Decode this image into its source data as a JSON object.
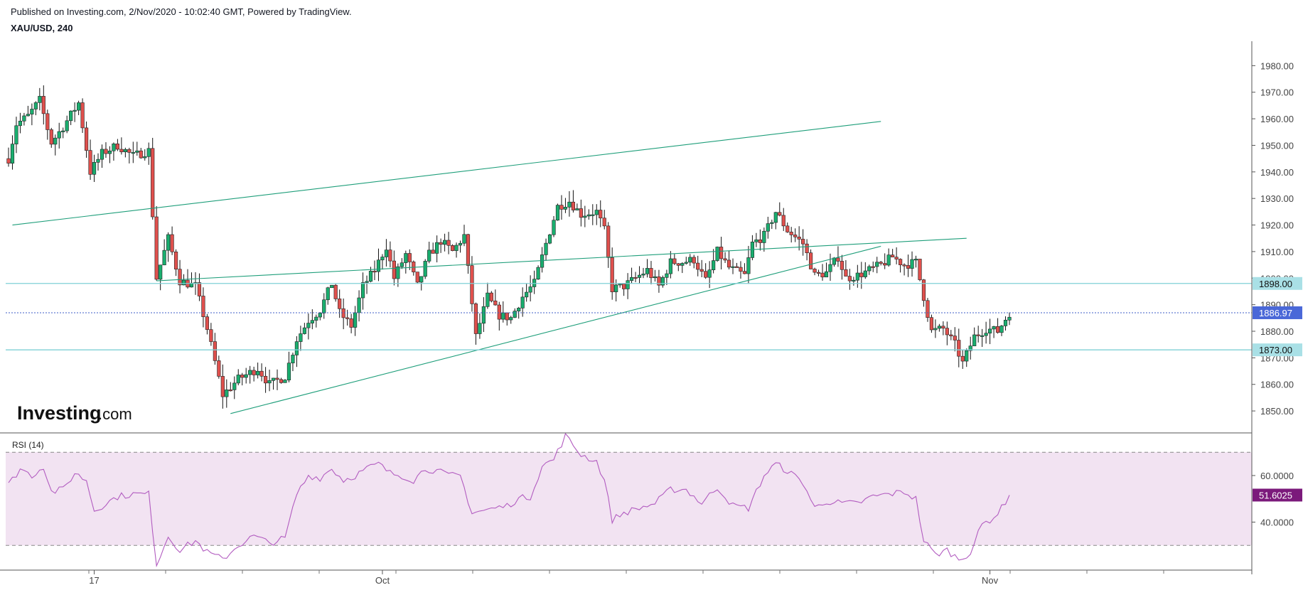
{
  "header": {
    "published_line": "Published on Investing.com, 2/Nov/2020 - 10:02:40 GMT, Powered by TradingView.",
    "symbol_line": "XAU/USD, 240"
  },
  "logo": {
    "brand": "Investing",
    "suffix": ".com"
  },
  "colors": {
    "bull": "#26a69a",
    "bull_fill": "#1aae6f",
    "bear": "#e0504d",
    "wick": "#111111",
    "trendline": "#1e9e7a",
    "support_line": "#7fd0d6",
    "current_line": "#3d5cc7",
    "rsi_line": "#b25cc0",
    "rsi_band": "#f2e3f2",
    "badge_support": "#a9e0e6",
    "badge_current": "#4a68d8",
    "badge_rsi": "#7b1a7b"
  },
  "chart_data": [
    {
      "type": "candlestick",
      "title": "XAU/USD, 240",
      "y_ticks": [
        "1850.00",
        "1860.00",
        "1870.00",
        "1880.00",
        "1890.00",
        "1900.00",
        "1910.00",
        "1920.00",
        "1930.00",
        "1940.00",
        "1950.00",
        "1960.00",
        "1970.00",
        "1980.00"
      ],
      "ylim": [
        1842,
        1990
      ],
      "x_tick_labels": [
        {
          "label": "17",
          "index": 22
        },
        {
          "label": "Oct",
          "index": 96
        },
        {
          "label": "Nov",
          "index": 252
        }
      ],
      "n_bars": 258,
      "horizontal_lines": [
        {
          "value": 1898.0,
          "label": "1898.00",
          "style": "support"
        },
        {
          "value": 1886.97,
          "label": "1886.97",
          "style": "current"
        },
        {
          "value": 1873.0,
          "label": "1873.00",
          "style": "support"
        }
      ],
      "trendlines": [
        {
          "x": [
            1,
            224
          ],
          "y": [
            1920,
            1959
          ]
        },
        {
          "x": [
            38,
            246
          ],
          "y": [
            1899,
            1915
          ]
        },
        {
          "x": [
            57,
            224
          ],
          "y": [
            1849,
            1912
          ]
        }
      ],
      "anchors": [
        [
          0,
          1945
        ],
        [
          2,
          1958
        ],
        [
          5,
          1961
        ],
        [
          8,
          1967
        ],
        [
          11,
          1951
        ],
        [
          14,
          1957
        ],
        [
          18,
          1966
        ],
        [
          21,
          1940
        ],
        [
          24,
          1947
        ],
        [
          28,
          1950
        ],
        [
          32,
          1946
        ],
        [
          36,
          1948
        ],
        [
          38,
          1900
        ],
        [
          41,
          1915
        ],
        [
          44,
          1899
        ],
        [
          48,
          1897
        ],
        [
          51,
          1881
        ],
        [
          55,
          1856
        ],
        [
          59,
          1862
        ],
        [
          64,
          1866
        ],
        [
          67,
          1860
        ],
        [
          71,
          1863
        ],
        [
          74,
          1877
        ],
        [
          77,
          1884
        ],
        [
          80,
          1888
        ],
        [
          83,
          1898
        ],
        [
          85,
          1887
        ],
        [
          88,
          1882
        ],
        [
          91,
          1897
        ],
        [
          94,
          1903
        ],
        [
          97,
          1912
        ],
        [
          99,
          1900
        ],
        [
          102,
          1909
        ],
        [
          105,
          1897
        ],
        [
          108,
          1909
        ],
        [
          111,
          1914
        ],
        [
          114,
          1910
        ],
        [
          117,
          1916
        ],
        [
          120,
          1878
        ],
        [
          123,
          1893
        ],
        [
          126,
          1886
        ],
        [
          129,
          1885
        ],
        [
          132,
          1893
        ],
        [
          135,
          1898
        ],
        [
          138,
          1913
        ],
        [
          141,
          1927
        ],
        [
          144,
          1929
        ],
        [
          147,
          1924
        ],
        [
          151,
          1925
        ],
        [
          153,
          1918
        ],
        [
          155,
          1896
        ],
        [
          158,
          1897
        ],
        [
          161,
          1900
        ],
        [
          164,
          1903
        ],
        [
          167,
          1897
        ],
        [
          170,
          1906
        ],
        [
          173,
          1906
        ],
        [
          176,
          1907
        ],
        [
          179,
          1899
        ],
        [
          182,
          1910
        ],
        [
          185,
          1904
        ],
        [
          189,
          1901
        ],
        [
          191,
          1913
        ],
        [
          194,
          1916
        ],
        [
          197,
          1925
        ],
        [
          200,
          1918
        ],
        [
          204,
          1913
        ],
        [
          207,
          1901
        ],
        [
          210,
          1902
        ],
        [
          213,
          1908
        ],
        [
          215,
          1900
        ],
        [
          218,
          1901
        ],
        [
          221,
          1903
        ],
        [
          224,
          1905
        ],
        [
          227,
          1908
        ],
        [
          230,
          1905
        ],
        [
          233,
          1906
        ],
        [
          235,
          1893
        ],
        [
          237,
          1880
        ],
        [
          240,
          1881
        ],
        [
          243,
          1875
        ],
        [
          245,
          1868
        ],
        [
          248,
          1878
        ],
        [
          251,
          1881
        ],
        [
          254,
          1880
        ],
        [
          257,
          1887
        ]
      ],
      "last_price": 1886.97
    },
    {
      "type": "line",
      "title": "RSI (14)",
      "y_ticks": [
        "40.0000",
        "60.0000"
      ],
      "ylim": [
        20,
        78
      ],
      "levels": [
        30,
        70
      ],
      "last_value": 51.6025,
      "last_label": "51.6025",
      "anchors": [
        [
          0,
          56
        ],
        [
          3,
          63
        ],
        [
          6,
          60
        ],
        [
          9,
          64
        ],
        [
          11,
          53
        ],
        [
          14,
          54
        ],
        [
          17,
          61
        ],
        [
          20,
          58
        ],
        [
          22,
          45
        ],
        [
          25,
          48
        ],
        [
          28,
          51
        ],
        [
          32,
          52
        ],
        [
          36,
          52
        ],
        [
          38,
          22
        ],
        [
          41,
          34
        ],
        [
          44,
          28
        ],
        [
          48,
          32
        ],
        [
          51,
          27
        ],
        [
          55,
          24
        ],
        [
          59,
          30
        ],
        [
          63,
          34
        ],
        [
          67,
          31
        ],
        [
          71,
          33
        ],
        [
          74,
          52
        ],
        [
          77,
          60
        ],
        [
          80,
          59
        ],
        [
          83,
          63
        ],
        [
          86,
          58
        ],
        [
          89,
          60
        ],
        [
          92,
          63
        ],
        [
          95,
          65
        ],
        [
          98,
          61
        ],
        [
          101,
          60
        ],
        [
          104,
          58
        ],
        [
          107,
          63
        ],
        [
          110,
          62
        ],
        [
          113,
          60
        ],
        [
          116,
          60
        ],
        [
          119,
          44
        ],
        [
          122,
          45
        ],
        [
          125,
          46
        ],
        [
          128,
          47
        ],
        [
          131,
          50
        ],
        [
          134,
          51
        ],
        [
          137,
          64
        ],
        [
          140,
          67
        ],
        [
          143,
          77
        ],
        [
          147,
          69
        ],
        [
          151,
          66
        ],
        [
          153,
          58
        ],
        [
          155,
          41
        ],
        [
          158,
          44
        ],
        [
          162,
          46
        ],
        [
          166,
          48
        ],
        [
          170,
          54
        ],
        [
          174,
          54
        ],
        [
          178,
          48
        ],
        [
          182,
          55
        ],
        [
          186,
          47
        ],
        [
          190,
          46
        ],
        [
          194,
          60
        ],
        [
          197,
          65
        ],
        [
          200,
          62
        ],
        [
          204,
          57
        ],
        [
          207,
          46
        ],
        [
          210,
          49
        ],
        [
          214,
          48
        ],
        [
          218,
          48
        ],
        [
          222,
          51
        ],
        [
          226,
          52
        ],
        [
          230,
          53
        ],
        [
          233,
          50
        ],
        [
          235,
          32
        ],
        [
          238,
          26
        ],
        [
          241,
          28
        ],
        [
          244,
          24
        ],
        [
          247,
          27
        ],
        [
          250,
          39
        ],
        [
          253,
          42
        ],
        [
          255,
          46
        ],
        [
          257,
          51.6025
        ]
      ]
    }
  ]
}
